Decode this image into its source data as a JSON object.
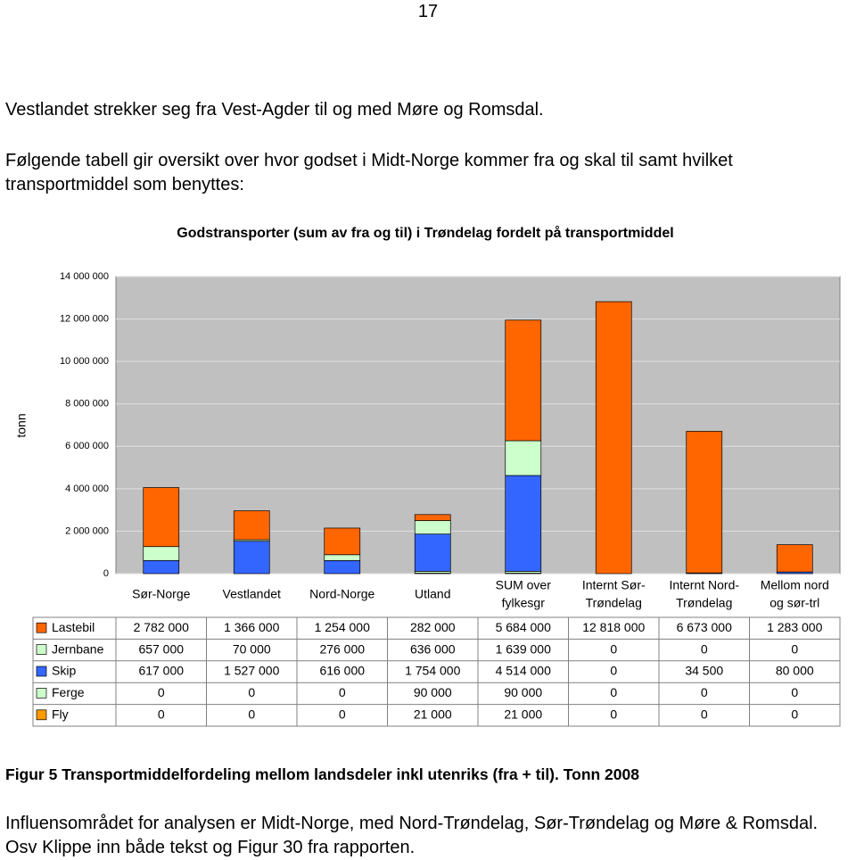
{
  "page_number": "17",
  "paragraphs": [
    "Vestlandet strekker seg fra Vest-Agder til og med Møre og Romsdal.",
    "Følgende tabell gir oversikt over hvor godset i Midt-Norge kommer fra og skal til samt hvilket transportmiddel som benyttes:"
  ],
  "chart_data": {
    "type": "stacked-bar",
    "title": "Godstransporter (sum av fra og til) i Trøndelag fordelt på transportmiddel",
    "y_label": "tonn",
    "categories": [
      [
        "Sør-Norge"
      ],
      [
        "Vestlandet"
      ],
      [
        "Nord-Norge"
      ],
      [
        "Utland"
      ],
      [
        "SUM over",
        "fylkesgr"
      ],
      [
        "Internt Sør-",
        "Trøndelag"
      ],
      [
        "Internt Nord-",
        "Trøndelag"
      ],
      [
        "Mellom nord",
        "og sør-trl"
      ]
    ],
    "series": [
      {
        "name": "Lastebil",
        "color": "#ff6600",
        "values": [
          2782000,
          1366000,
          1254000,
          282000,
          5684000,
          12818000,
          6673000,
          1283000
        ],
        "value_labels": [
          "2 782 000",
          "1 366 000",
          "1 254 000",
          "282 000",
          "5 684 000",
          "12 818 000",
          "6 673 000",
          "1 283 000"
        ]
      },
      {
        "name": "Jernbane",
        "color": "#ccffcc",
        "values": [
          657000,
          70000,
          276000,
          636000,
          1639000,
          0,
          0,
          0
        ],
        "value_labels": [
          "657 000",
          "70 000",
          "276 000",
          "636 000",
          "1 639 000",
          "0",
          "0",
          "0"
        ]
      },
      {
        "name": "Skip",
        "color": "#3366ff",
        "values": [
          617000,
          1527000,
          616000,
          1754000,
          4514000,
          0,
          34500,
          80000
        ],
        "value_labels": [
          "617 000",
          "1 527 000",
          "616 000",
          "1 754 000",
          "4 514 000",
          "0",
          "34 500",
          "80 000"
        ]
      },
      {
        "name": "Ferge",
        "color": "#ccffcc",
        "values": [
          0,
          0,
          0,
          90000,
          90000,
          0,
          0,
          0
        ],
        "value_labels": [
          "0",
          "0",
          "0",
          "90 000",
          "90 000",
          "0",
          "0",
          "0"
        ]
      },
      {
        "name": "Fly",
        "color": "#ff9900",
        "values": [
          0,
          0,
          0,
          21000,
          21000,
          0,
          0,
          0
        ],
        "value_labels": [
          "0",
          "0",
          "0",
          "21 000",
          "21 000",
          "0",
          "0",
          "0"
        ]
      }
    ],
    "ylim": [
      0,
      14000000
    ],
    "yticks": [
      0,
      {
        "value": 2000000,
        "label": "2 000 000"
      },
      {
        "value": 4000000,
        "label": "4 000 000"
      },
      {
        "value": 6000000,
        "label": "6 000 000"
      },
      {
        "value": 8000000,
        "label": "8 000 000"
      },
      {
        "value": 10000000,
        "label": "10 000 000"
      },
      {
        "value": 12000000,
        "label": "12 000 000"
      },
      {
        "value": 14000000,
        "label": "14 000 000"
      }
    ],
    "grid": true
  },
  "caption": "Figur 5 Transportmiddelfordeling mellom landsdeler inkl utenriks (fra + til). Tonn 2008",
  "closing": "Influensområdet for analysen er Midt-Norge, med Nord-Trøndelag, Sør-Trøndelag og Møre & Romsdal. Osv Klippe inn både tekst og Figur 30 fra rapporten."
}
